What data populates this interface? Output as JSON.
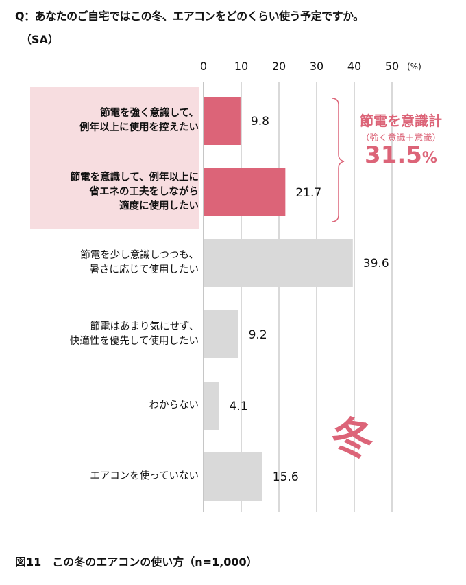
{
  "title": "Q：あなたのご自宅ではこの冬、エアコンをどのくらい使う予定ですか。",
  "subtitle": "（SA）",
  "caption": "図11　この冬のエアコンの使い方（n=1,000）",
  "annotation": {
    "line1": "節電を意識計",
    "line2": "（強く意識＋意識）",
    "value": "31.5",
    "unit": "%"
  },
  "stamp": "冬",
  "colors": {
    "highlight": "#dc6478",
    "neutral": "#d9d9d9",
    "highlight_bg": "#f7dde0"
  },
  "chart_data": {
    "type": "bar",
    "orientation": "horizontal",
    "categories": [
      "節電を強く意識して、\n例年以上に使用を控えたい",
      "節電を意識して、例年以上に\n省エネの工夫をしながら\n適度に使用したい",
      "節電を少し意識しつつも、\n暑さに応じて使用したい",
      "節電はあまり気にせず、\n快適性を優先して使用したい",
      "わからない",
      "エアコンを使っていない"
    ],
    "values": [
      9.8,
      21.7,
      39.6,
      9.2,
      4.1,
      15.6
    ],
    "highlighted": [
      true,
      true,
      false,
      false,
      false,
      false
    ],
    "value_labels": [
      "9.8",
      "21.7",
      "39.6",
      "9.2",
      "4.1",
      "15.6"
    ],
    "xlim": [
      0,
      50
    ],
    "ticks": [
      "0",
      "10",
      "20",
      "30",
      "40",
      "50"
    ],
    "unit_label": "(%)",
    "grid": true
  }
}
